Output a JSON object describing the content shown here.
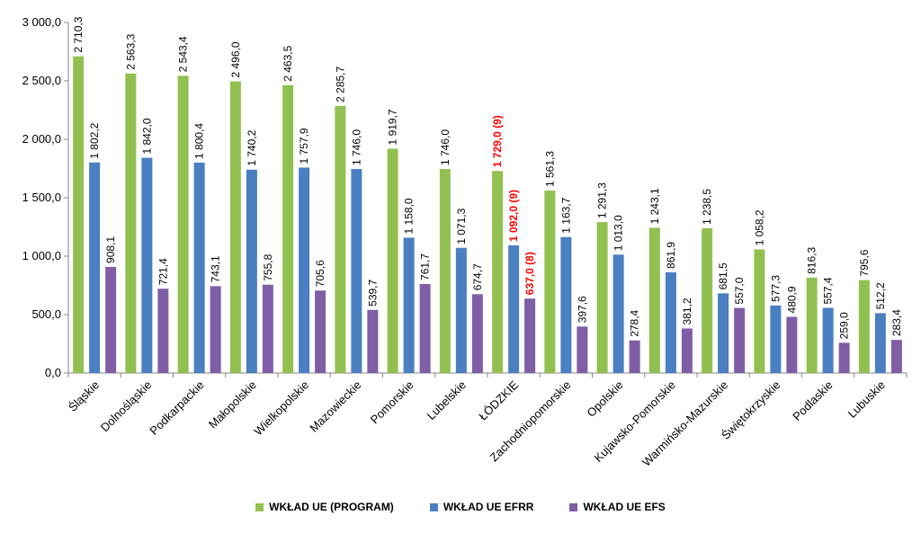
{
  "chart_data": {
    "type": "bar",
    "categories": [
      "Śląskie",
      "Dolnośląskie",
      "Podkarpackie",
      "Małopolskie",
      "Wielkopolskie",
      "Mazowieckie",
      "Pomorskie",
      "Lubelskie",
      "ŁÓDZKIE",
      "Zachodniopomorskie",
      "Opolskie",
      "Kujawsko-Pomorskie",
      "Warmińsko-Mazurskie",
      "Świętokrzyskie",
      "Podlaskie",
      "Lubuskie"
    ],
    "highlight_category": "ŁÓDZKIE",
    "highlight_color": "#ff0000",
    "series": [
      {
        "name": "WKŁAD UE (PROGRAM)",
        "color": "#92c050",
        "values": [
          2710.3,
          2563.3,
          2543.4,
          2496.0,
          2463.5,
          2285.7,
          1919.7,
          1746.0,
          1729.0,
          1561.3,
          1291.3,
          1243.1,
          1238.5,
          1058.2,
          816.3,
          795.6
        ],
        "labels": [
          "2 710,3",
          "2 563,3",
          "2 543,4",
          "2 496,0",
          "2 463,5",
          "2 285,7",
          "1 919,7",
          "1 746,0",
          "1 729,0 (9)",
          "1 561,3",
          "1 291,3",
          "1 243,1",
          "1 238,5",
          "1 058,2",
          "816,3",
          "795,6"
        ]
      },
      {
        "name": "WKŁAD UE EFRR",
        "color": "#4a7fc1",
        "values": [
          1802.2,
          1842.0,
          1800.4,
          1740.2,
          1757.9,
          1746.0,
          1158.0,
          1071.3,
          1092.0,
          1163.7,
          1013.0,
          861.9,
          681.5,
          577.3,
          557.4,
          512.2
        ],
        "labels": [
          "1 802,2",
          "1 842,0",
          "1 800,4",
          "1 740,2",
          "1 757,9",
          "1 746,0",
          "1 158,0",
          "1 071,3",
          "1 092,0 (9)",
          "1 163,7",
          "1 013,0",
          "861,9",
          "681,5",
          "577,3",
          "557,4",
          "512,2"
        ]
      },
      {
        "name": "WKŁAD UE EFS",
        "color": "#7f5ea5",
        "values": [
          908.1,
          721.4,
          743.1,
          755.8,
          705.6,
          539.7,
          761.7,
          674.7,
          637.0,
          397.6,
          278.4,
          381.2,
          557.0,
          480.9,
          259.0,
          283.4
        ],
        "labels": [
          "908,1",
          "721,4",
          "743,1",
          "755,8",
          "705,6",
          "539,7",
          "761,7",
          "674,7",
          "637,0 (8)",
          "397,6",
          "278,4",
          "381,2",
          "557,0",
          "480,9",
          "259,0",
          "283,4"
        ]
      }
    ],
    "yticks": [
      "0,0",
      "500,0",
      "1 000,0",
      "1 500,0",
      "2 000,0",
      "2 500,0",
      "3 000,0"
    ],
    "ylim": [
      0,
      3000
    ],
    "grid": false,
    "legend_position": "bottom"
  }
}
